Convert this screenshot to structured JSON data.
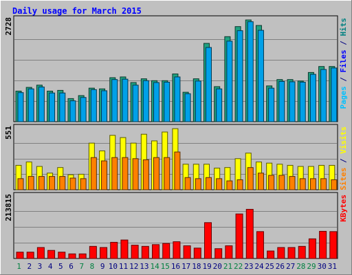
{
  "chart_data": {
    "type": "bar",
    "title": "Daily usage for March 2015",
    "categories": [
      "1",
      "2",
      "3",
      "4",
      "5",
      "6",
      "7",
      "8",
      "9",
      "10",
      "11",
      "12",
      "13",
      "14",
      "15",
      "16",
      "17",
      "18",
      "19",
      "20",
      "21",
      "22",
      "23",
      "24",
      "25",
      "26",
      "27",
      "28",
      "29",
      "30",
      "31"
    ],
    "weekend_days": [
      "1",
      "7",
      "8",
      "14",
      "15",
      "21",
      "22",
      "28",
      "29"
    ],
    "panels": [
      {
        "id": "top",
        "max_label": "2728",
        "ylim": [
          0,
          2728
        ],
        "right_label_parts": [
          {
            "text": "Pages",
            "color": "#00C0FF"
          },
          {
            "text": " / ",
            "color": "#000080"
          },
          {
            "text": "Files",
            "color": "#0000FF"
          },
          {
            "text": " / ",
            "color": "#000080"
          },
          {
            "text": "Hits",
            "color": "#008080"
          }
        ],
        "series": [
          {
            "name": "Hits",
            "color": "#20A080",
            "values": [
              820,
              920,
              980,
              820,
              840,
              620,
              700,
              900,
              880,
              1180,
              1200,
              1050,
              1150,
              1100,
              1100,
              1280,
              790,
              1150,
              2100,
              940,
              2280,
              2550,
              2728,
              2580,
              960,
              1130,
              1130,
              1090,
              1320,
              1480,
              1480
            ]
          },
          {
            "name": "Files",
            "color": "#00A0E8",
            "values": [
              780,
              880,
              930,
              770,
              770,
              560,
              650,
              860,
              830,
              1130,
              1140,
              980,
              1100,
              1050,
              1060,
              1200,
              750,
              1090,
              1990,
              880,
              2160,
              2440,
              2680,
              2450,
              900,
              1080,
              1070,
              1060,
              1270,
              1400,
              1440
            ]
          }
        ]
      },
      {
        "id": "mid",
        "max_label": "551",
        "ylim": [
          0,
          551
        ],
        "right_label_parts": [
          {
            "text": "Sites",
            "color": "#FF8000"
          },
          {
            "text": " / ",
            "color": "#000080"
          },
          {
            "text": "Visits",
            "color": "#FFFF00"
          }
        ],
        "series": [
          {
            "name": "Visits",
            "color": "#FFFF00",
            "values": [
              220,
              250,
              210,
              150,
              200,
              135,
              140,
              420,
              350,
              490,
              470,
              420,
              500,
              440,
              520,
              550,
              230,
              230,
              230,
              195,
              200,
              280,
              330,
              250,
              240,
              230,
              220,
              210,
              210,
              220,
              220
            ]
          },
          {
            "name": "Sites",
            "color": "#FF8000",
            "values": [
              100,
              120,
              120,
              120,
              120,
              105,
              100,
              290,
              260,
              290,
              290,
              280,
              270,
              290,
              290,
              340,
              110,
              100,
              110,
              100,
              80,
              90,
              200,
              150,
              130,
              130,
              120,
              100,
              100,
              100,
              90
            ]
          }
        ]
      },
      {
        "id": "bot",
        "max_label": "213815",
        "ylim": [
          0,
          213815
        ],
        "right_label_parts": [
          {
            "text": "KBytes",
            "color": "#FF0000"
          }
        ],
        "series": [
          {
            "name": "KBytes",
            "color": "#FF0000",
            "values": [
              22000,
              22000,
              38000,
              28000,
              22000,
              16000,
              16000,
              42000,
              38000,
              56000,
              64000,
              46000,
              42000,
              48000,
              52000,
              58000,
              44000,
              36000,
              124000,
              34000,
              44000,
              154000,
              170000,
              93000,
              26000,
              38000,
              38000,
              42000,
              68000,
              94000,
              93000
            ]
          }
        ]
      }
    ]
  }
}
